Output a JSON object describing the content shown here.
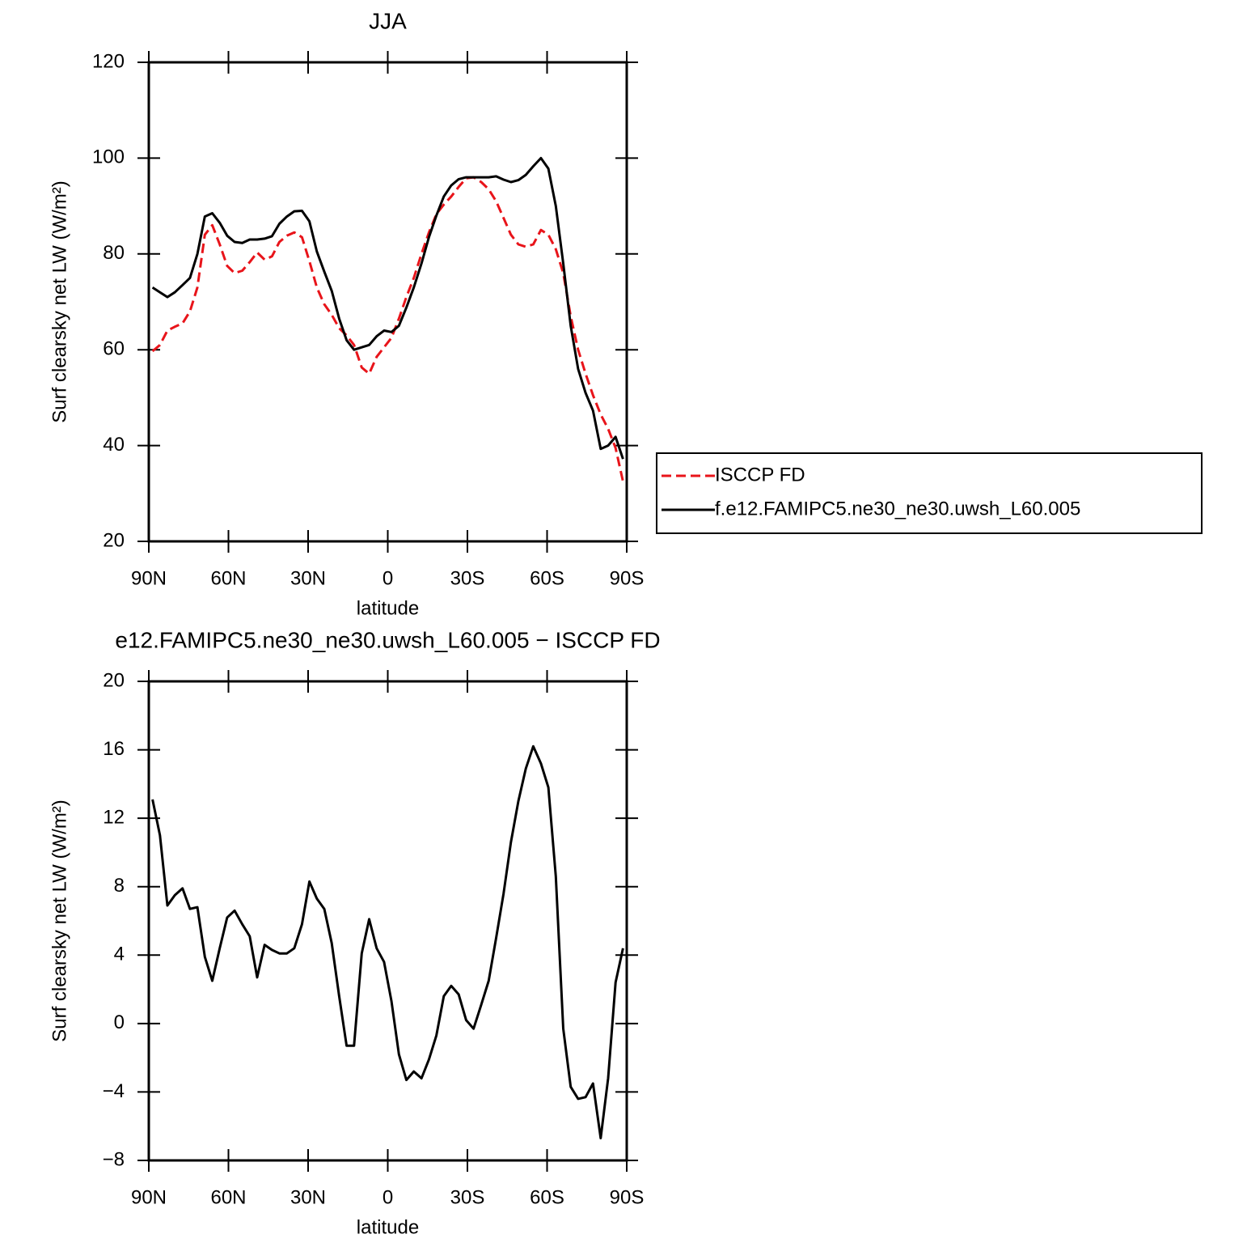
{
  "chart_data": [
    {
      "type": "line",
      "title": "JJA",
      "xlabel": "latitude",
      "ylabel": "Surf clearsky net LW (W/m²)",
      "x": [
        88.6,
        85.8,
        83.0,
        80.2,
        77.3,
        74.5,
        71.7,
        68.9,
        66.1,
        63.3,
        60.5,
        57.7,
        54.8,
        52.0,
        49.2,
        46.4,
        43.6,
        40.8,
        38.0,
        35.2,
        32.3,
        29.5,
        26.7,
        23.9,
        21.1,
        18.3,
        15.5,
        12.7,
        9.8,
        7.0,
        4.2,
        1.4,
        -1.4,
        -4.2,
        -7.0,
        -9.8,
        -12.7,
        -15.5,
        -18.3,
        -21.1,
        -23.9,
        -26.7,
        -29.5,
        -32.3,
        -35.2,
        -38.0,
        -40.8,
        -43.6,
        -46.4,
        -49.2,
        -52.0,
        -54.8,
        -57.7,
        -60.5,
        -63.3,
        -66.1,
        -68.9,
        -71.7,
        -74.5,
        -77.3,
        -80.2,
        -83.0,
        -85.8,
        -88.6
      ],
      "series": [
        {
          "name": "ISCCP FD",
          "color": "#e8141a",
          "style": "dashed",
          "values": [
            59.7,
            61,
            64,
            64.8,
            65.5,
            68,
            73,
            84,
            86,
            82,
            77.5,
            76,
            76.5,
            78.3,
            80.3,
            78.8,
            79.5,
            82.5,
            83.8,
            84.5,
            83.5,
            78.5,
            73,
            69.5,
            67.3,
            64.5,
            63,
            61,
            56.3,
            55,
            58.5,
            60.5,
            62.5,
            66.5,
            71,
            75,
            80,
            84.5,
            88.3,
            90.3,
            92,
            94,
            95.8,
            96,
            95,
            93.5,
            91,
            87.5,
            84,
            82,
            81.5,
            82,
            85,
            84,
            81,
            76,
            67,
            60,
            55,
            50.5,
            46.5,
            43.5,
            39.5,
            32.5
          ]
        },
        {
          "name": "f.e12.FAMIPC5.ne30_ne30.uwsh_L60.005",
          "color": "#000000",
          "style": "solid",
          "values": [
            73,
            72,
            71,
            72,
            73.5,
            75,
            80,
            87.8,
            88.5,
            86.5,
            83.8,
            82.5,
            82.3,
            83,
            83,
            83.2,
            83.7,
            86.3,
            87.8,
            88.9,
            89,
            86.8,
            80.5,
            76.3,
            72.3,
            66.5,
            62,
            60,
            60.5,
            61,
            62.8,
            64,
            63.7,
            65,
            68.8,
            73,
            78,
            83.5,
            88,
            92,
            94.3,
            95.6,
            96,
            96,
            96,
            96,
            96.2,
            95.5,
            95,
            95.4,
            96.5,
            98.3,
            100,
            97.8,
            90,
            78,
            65,
            56,
            51,
            47.3,
            39.3,
            40,
            41.8,
            37.2
          ]
        }
      ],
      "xlim": [
        90,
        -90
      ],
      "xticks": [
        {
          "value": 90,
          "label": "90N"
        },
        {
          "value": 60,
          "label": "60N"
        },
        {
          "value": 30,
          "label": "30N"
        },
        0,
        {
          "value": -30,
          "label": "30S"
        },
        {
          "value": -60,
          "label": "60S"
        },
        {
          "value": -90,
          "label": "90S"
        }
      ],
      "ylim": [
        20,
        120
      ],
      "yticks": [
        20,
        40,
        60,
        80,
        100,
        120
      ],
      "legend": "outside-right"
    },
    {
      "type": "line",
      "title": "e12.FAMIPC5.ne30_ne30.uwsh_L60.005 − ISCCP FD",
      "xlabel": "latitude",
      "ylabel": "Surf clearsky net LW (W/m²)",
      "x": [
        88.6,
        85.8,
        83.0,
        80.2,
        77.3,
        74.5,
        71.7,
        68.9,
        66.1,
        63.3,
        60.5,
        57.7,
        54.8,
        52.0,
        49.2,
        46.4,
        43.6,
        40.8,
        38.0,
        35.2,
        32.3,
        29.5,
        26.7,
        23.9,
        21.1,
        18.3,
        15.5,
        12.7,
        9.8,
        7.0,
        4.2,
        1.4,
        -1.4,
        -4.2,
        -7.0,
        -9.8,
        -12.7,
        -15.5,
        -18.3,
        -21.1,
        -23.9,
        -26.7,
        -29.5,
        -32.3,
        -35.2,
        -38.0,
        -40.8,
        -43.6,
        -46.4,
        -49.2,
        -52.0,
        -54.8,
        -57.7,
        -60.5,
        -63.3,
        -66.1,
        -68.9,
        -71.7,
        -74.5,
        -77.3,
        -80.2,
        -83.0,
        -85.8,
        -88.6
      ],
      "color": "#000000",
      "values": [
        13.1,
        11,
        6.9,
        7.5,
        7.9,
        6.7,
        6.8,
        3.9,
        2.5,
        4.4,
        6.2,
        6.6,
        5.8,
        5.1,
        2.7,
        4.6,
        4.3,
        4.1,
        4.1,
        4.4,
        5.8,
        8.3,
        7.3,
        6.7,
        4.7,
        1.6,
        -1.3,
        -1.3,
        4.1,
        6.1,
        4.4,
        3.6,
        1.3,
        -1.8,
        -3.3,
        -2.8,
        -3.2,
        -2.1,
        -0.7,
        1.6,
        2.2,
        1.7,
        0.2,
        -0.3,
        1.1,
        2.5,
        5,
        7.6,
        10.6,
        13,
        14.9,
        16.2,
        15.2,
        13.8,
        8.6,
        -0.3,
        -3.7,
        -4.4,
        -4.3,
        -3.5,
        -6.7,
        -3.2,
        2.4,
        4.4
      ],
      "xlim": [
        90,
        -90
      ],
      "xticks": [
        {
          "value": 90,
          "label": "90N"
        },
        {
          "value": 60,
          "label": "60N"
        },
        {
          "value": 30,
          "label": "30N"
        },
        0,
        {
          "value": -30,
          "label": "30S"
        },
        {
          "value": -60,
          "label": "60S"
        },
        {
          "value": -90,
          "label": "90S"
        }
      ],
      "ylim": [
        -8,
        20
      ],
      "yticks": [
        {
          "value": -8,
          "label": "−8"
        },
        {
          "value": -4,
          "label": "−4"
        },
        0,
        4,
        8,
        12,
        16,
        20
      ]
    }
  ]
}
